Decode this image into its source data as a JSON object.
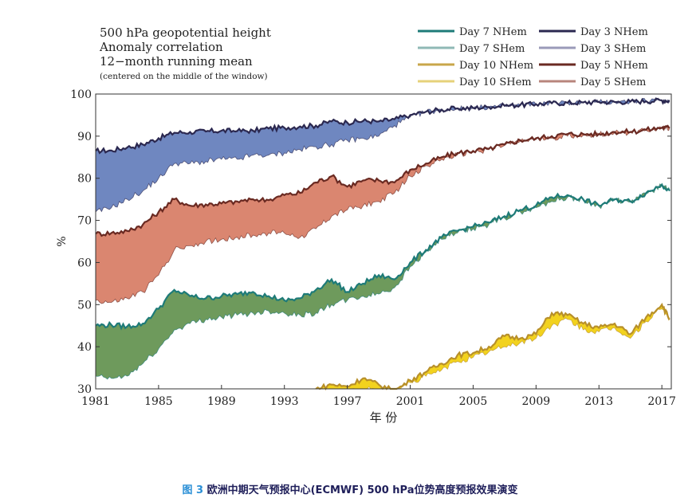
{
  "chart_data": {
    "type": "area",
    "title_lines": [
      "500 hPa geopotential height",
      "Anomaly correlation",
      "12−month running mean"
    ],
    "subtitle": "(centered on the middle of the window)",
    "xlabel": "年  份",
    "ylabel": "%",
    "xlim": [
      1981,
      2017.6
    ],
    "ylim": [
      30,
      100
    ],
    "xticks": [
      "1981",
      "1985",
      "1989",
      "1993",
      "1997",
      "2001",
      "2005",
      "2009",
      "2013",
      "2017"
    ],
    "yticks": [
      "30",
      "40",
      "50",
      "60",
      "70",
      "80",
      "90",
      "100"
    ],
    "legend": [
      {
        "label": "Day 7 NHem",
        "color": "#1e7b78"
      },
      {
        "label": "Day 3 NHem",
        "color": "#2b2850"
      },
      {
        "label": "Day 7 SHem",
        "color": "#8fb8b5"
      },
      {
        "label": "Day 3 SHem",
        "color": "#9a9ab8"
      },
      {
        "label": "Day 10 NHem",
        "color": "#c8a64a"
      },
      {
        "label": "Day 5 NHem",
        "color": "#6a2a22"
      },
      {
        "label": "Day 10 SHem",
        "color": "#e6d27a"
      },
      {
        "label": "Day 5 SHem",
        "color": "#b8857c"
      }
    ],
    "bands": [
      {
        "name": "Day 3",
        "nhem_color": "#2b2850",
        "fill": "#6f87c0",
        "x": [
          1981,
          1982,
          1983,
          1984,
          1985,
          1986,
          1987,
          1988,
          1989,
          1990,
          1991,
          1992,
          1993,
          1994,
          1995,
          1996,
          1997,
          1998,
          1999,
          2000,
          2001,
          2002,
          2003,
          2004,
          2005,
          2006,
          2007,
          2008,
          2009,
          2010,
          2011,
          2012,
          2013,
          2014,
          2015,
          2016,
          2017,
          2017.5
        ],
        "nhem": [
          86.5,
          86.6,
          87.3,
          88.0,
          89.5,
          90.8,
          91.0,
          91.1,
          91.3,
          91.2,
          91.3,
          91.8,
          92.0,
          92.3,
          92.5,
          93.5,
          93.2,
          93.6,
          93.5,
          94.0,
          95.0,
          95.8,
          96.3,
          96.6,
          96.7,
          96.9,
          97.2,
          97.4,
          97.6,
          97.8,
          97.9,
          98.0,
          98.1,
          98.1,
          98.2,
          98.3,
          98.5,
          98.4
        ],
        "shem": [
          72.0,
          73.0,
          75.0,
          77.0,
          80.0,
          83.5,
          83.5,
          84.0,
          84.5,
          84.5,
          85.5,
          85.5,
          86.0,
          86.8,
          87.5,
          88.0,
          89.0,
          89.5,
          90.0,
          92.5,
          94.5,
          95.8,
          96.2,
          96.5,
          96.6,
          96.9,
          97.2,
          97.4,
          97.6,
          97.8,
          97.9,
          98.0,
          98.1,
          98.1,
          98.2,
          98.3,
          98.5,
          98.4
        ]
      },
      {
        "name": "Day 5",
        "nhem_color": "#6a2a22",
        "fill": "#da8670",
        "x": [
          1981,
          1982,
          1983,
          1984,
          1985,
          1986,
          1987,
          1988,
          1989,
          1990,
          1991,
          1992,
          1993,
          1994,
          1995,
          1996,
          1997,
          1998,
          1999,
          2000,
          2001,
          2002,
          2003,
          2004,
          2005,
          2006,
          2007,
          2008,
          2009,
          2010,
          2011,
          2012,
          2013,
          2014,
          2015,
          2016,
          2017,
          2017.5
        ],
        "nhem": [
          66.8,
          67.0,
          67.5,
          69.0,
          72.0,
          75.0,
          73.5,
          73.8,
          74.0,
          74.5,
          75.0,
          74.8,
          76.0,
          76.5,
          79.0,
          80.5,
          78.0,
          79.5,
          79.5,
          79.0,
          82.0,
          83.5,
          85.0,
          86.0,
          86.5,
          87.0,
          88.0,
          89.0,
          89.5,
          90.0,
          90.5,
          90.5,
          90.5,
          91.0,
          91.0,
          91.5,
          92.0,
          92.0
        ],
        "shem": [
          51.0,
          50.5,
          51.5,
          53.0,
          57.0,
          63.0,
          64.0,
          65.0,
          65.5,
          66.0,
          66.5,
          67.0,
          67.0,
          66.0,
          68.0,
          71.0,
          72.5,
          73.5,
          74.5,
          76.5,
          80.5,
          83.0,
          84.5,
          85.5,
          86.2,
          86.8,
          87.8,
          88.8,
          89.2,
          89.5,
          90.0,
          90.2,
          90.4,
          90.8,
          90.9,
          91.4,
          91.9,
          92.0
        ]
      },
      {
        "name": "Day 7",
        "nhem_color": "#1e7b78",
        "fill": "#6e9a5c",
        "x": [
          1981,
          1982,
          1983,
          1984,
          1985,
          1986,
          1987,
          1988,
          1989,
          1990,
          1991,
          1992,
          1993,
          1994,
          1995,
          1996,
          1997,
          1998,
          1999,
          2000,
          2001,
          2002,
          2003,
          2004,
          2005,
          2006,
          2007,
          2008,
          2009,
          2010,
          2011,
          2012,
          2013,
          2014,
          2015,
          2016,
          2017,
          2017.5
        ],
        "nhem": [
          45.0,
          45.2,
          44.8,
          45.5,
          49.0,
          53.5,
          52.0,
          51.5,
          52.0,
          52.5,
          53.0,
          52.0,
          51.0,
          51.5,
          53.5,
          56.0,
          53.0,
          55.0,
          57.0,
          56.0,
          60.0,
          63.0,
          66.0,
          67.5,
          68.5,
          69.5,
          71.0,
          72.5,
          73.5,
          75.5,
          76.0,
          75.0,
          73.5,
          75.0,
          74.5,
          76.5,
          78.5,
          77.0
        ],
        "shem": [
          33.0,
          32.5,
          33.0,
          36.0,
          39.5,
          44.0,
          45.5,
          46.5,
          47.0,
          47.5,
          48.0,
          48.5,
          48.0,
          47.5,
          48.0,
          50.0,
          51.0,
          52.0,
          52.5,
          54.0,
          59.0,
          62.5,
          65.5,
          67.0,
          68.0,
          69.0,
          70.5,
          72.0,
          73.0,
          74.5,
          75.5,
          74.8,
          73.3,
          74.8,
          74.3,
          76.3,
          78.3,
          77.0
        ]
      },
      {
        "name": "Day 10",
        "nhem_color": "#b8902a",
        "fill": "#f2d21e",
        "x": [
          1995,
          1996,
          1997,
          1998,
          1999,
          2000,
          2001,
          2002,
          2003,
          2004,
          2005,
          2006,
          2007,
          2008,
          2009,
          2010,
          2011,
          2012,
          2013,
          2014,
          2015,
          2016,
          2017,
          2017.5
        ],
        "nhem": [
          30.0,
          31.0,
          30.5,
          32.5,
          31.0,
          29.5,
          32.0,
          34.0,
          36.0,
          38.0,
          38.5,
          40.0,
          42.5,
          42.0,
          43.0,
          48.0,
          47.5,
          45.5,
          44.5,
          45.5,
          43.0,
          47.0,
          50.0,
          46.5
        ],
        "shem": [
          29.0,
          29.5,
          29.0,
          30.0,
          29.5,
          29.0,
          31.5,
          33.0,
          34.5,
          36.5,
          37.5,
          38.8,
          40.0,
          41.0,
          42.0,
          45.0,
          46.5,
          44.0,
          43.5,
          44.5,
          42.0,
          46.0,
          49.0,
          46.5
        ]
      }
    ]
  },
  "caption": {
    "fig_label": "图 3",
    "text": " 欧洲中期天气预报中心(ECMWF) 500 hPa位势高度预报效果演变"
  }
}
